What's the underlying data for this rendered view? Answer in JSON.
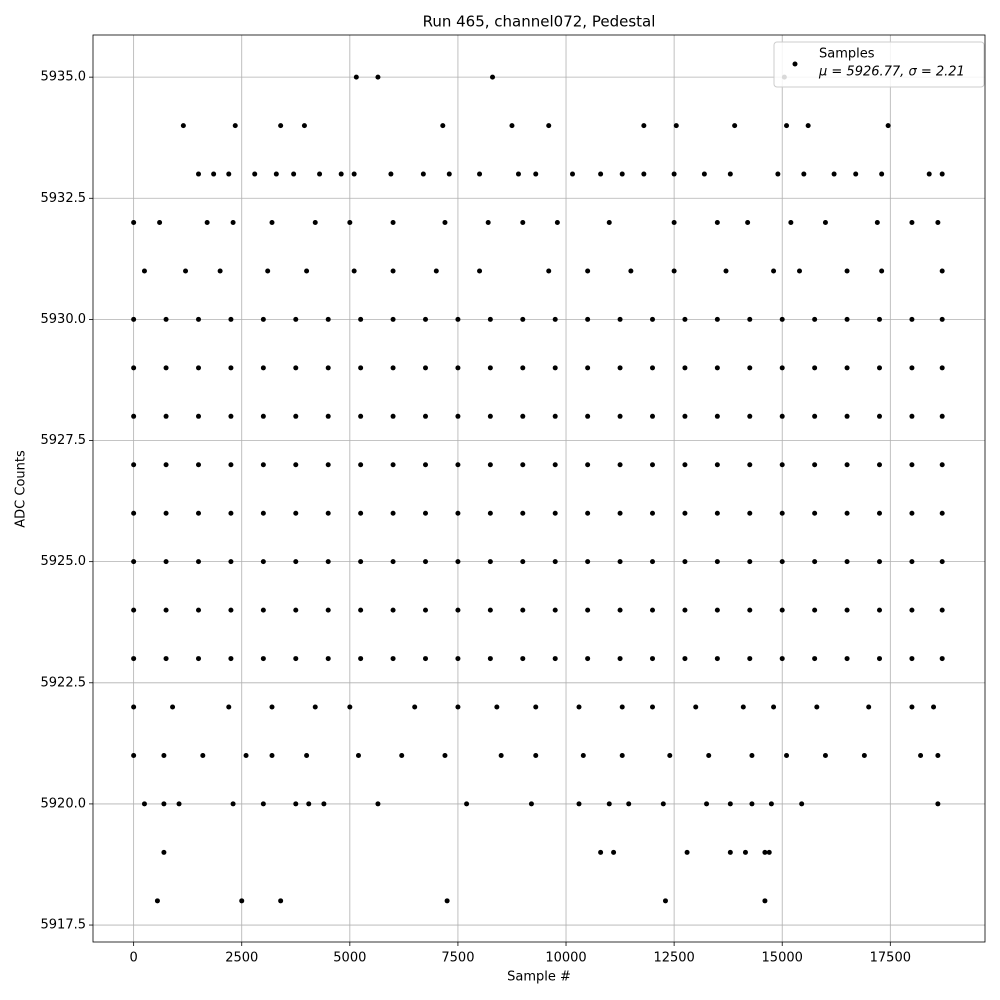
{
  "chart_data": {
    "type": "scatter",
    "title": "Run 465, channel072, Pedestal",
    "x_label": "Sample #",
    "y_label": "ADC Counts",
    "xlim": [
      -940,
      19690
    ],
    "ylim": [
      5917.15,
      5935.87
    ],
    "xticks": [
      0,
      2500,
      5000,
      7500,
      10000,
      12500,
      15000,
      17500
    ],
    "yticks": [
      {
        "value": 5917.5,
        "label": "5917.5"
      },
      {
        "value": 5920,
        "label": "5920.0"
      },
      {
        "value": 5922.5,
        "label": "5922.5"
      },
      {
        "value": 5925,
        "label": "5925.0"
      },
      {
        "value": 5927.5,
        "label": "5927.5"
      },
      {
        "value": 5930,
        "label": "5930.0"
      },
      {
        "value": 5932.5,
        "label": "5932.5"
      },
      {
        "value": 5935,
        "label": "5935.0"
      }
    ],
    "grid": true,
    "legend": "upper right",
    "legend_note": "μ = 5926.77, σ = 2.21",
    "x": [
      5150,
      5650,
      8300,
      15050,
      1150,
      2350,
      3400,
      3950,
      7150,
      8750,
      9600,
      11800,
      12550,
      13900,
      15100,
      15600,
      17450,
      1500,
      1850,
      2200,
      2800,
      3300,
      3700,
      4300,
      4800,
      5100,
      5950,
      6700,
      7300,
      8000,
      8900,
      9300,
      10150,
      10800,
      11300,
      11800,
      12500,
      13200,
      13800,
      14900,
      15500,
      16200,
      16700,
      17300,
      18400,
      18700,
      0,
      600,
      1700,
      2300,
      3200,
      4200,
      5000,
      6000,
      7200,
      8200,
      9000,
      9800,
      11000,
      12500,
      13500,
      14200,
      15200,
      16000,
      17200,
      18000,
      18600,
      250,
      1200,
      2000,
      3100,
      4000,
      5100,
      6000,
      7000,
      8000,
      9600,
      10500,
      11500,
      12500,
      13700,
      14800,
      15400,
      16500,
      17300,
      18700,
      0,
      750,
      1500,
      2250,
      3000,
      3750,
      4500,
      5250,
      6000,
      6750,
      7500,
      8250,
      9000,
      9750,
      10500,
      11250,
      12000,
      12750,
      13500,
      14250,
      15000,
      15750,
      16500,
      17250,
      18000,
      18700,
      0,
      750,
      1500,
      2250,
      3000,
      3750,
      4500,
      5250,
      6000,
      6750,
      7500,
      8250,
      9000,
      9750,
      10500,
      11250,
      12000,
      12750,
      13500,
      14250,
      15000,
      15750,
      16500,
      17250,
      18000,
      18700,
      0,
      750,
      1500,
      2250,
      3000,
      3750,
      4500,
      5250,
      6000,
      6750,
      7500,
      8250,
      9000,
      9750,
      10500,
      11250,
      12000,
      12750,
      13500,
      14250,
      15000,
      15750,
      16500,
      17250,
      18000,
      18700,
      0,
      750,
      1500,
      2250,
      3000,
      3750,
      4500,
      5250,
      6000,
      6750,
      7500,
      8250,
      9000,
      9750,
      10500,
      11250,
      12000,
      12750,
      13500,
      14250,
      15000,
      15750,
      16500,
      17250,
      18000,
      18700,
      0,
      750,
      1500,
      2250,
      3000,
      3750,
      4500,
      5250,
      6000,
      6750,
      7500,
      8250,
      9000,
      9750,
      10500,
      11250,
      12000,
      12750,
      13500,
      14250,
      15000,
      15750,
      16500,
      17250,
      18000,
      18700,
      0,
      750,
      1500,
      2250,
      3000,
      3750,
      4500,
      5250,
      6000,
      6750,
      7500,
      8250,
      9000,
      9750,
      10500,
      11250,
      12000,
      12750,
      13500,
      14250,
      15000,
      15750,
      16500,
      17250,
      18000,
      18700,
      0,
      750,
      1500,
      2250,
      3000,
      3750,
      4500,
      5250,
      6000,
      6750,
      7500,
      8250,
      9000,
      9750,
      10500,
      11250,
      12000,
      12750,
      13500,
      14250,
      15000,
      15750,
      16500,
      17250,
      18000,
      18700,
      0,
      750,
      1500,
      2250,
      3000,
      3750,
      4500,
      5250,
      6000,
      6750,
      7500,
      8250,
      9000,
      9750,
      10500,
      11250,
      12000,
      12750,
      13500,
      14250,
      15000,
      15750,
      16500,
      17250,
      18000,
      18700,
      0,
      900,
      2200,
      3200,
      4200,
      5000,
      6500,
      7500,
      8400,
      9300,
      10300,
      11300,
      12000,
      13000,
      14100,
      14800,
      15800,
      17000,
      18000,
      18500,
      0,
      700,
      1600,
      2600,
      3200,
      4000,
      5200,
      6200,
      7200,
      8500,
      9300,
      10400,
      11300,
      12400,
      13300,
      14300,
      15100,
      16000,
      16900,
      18200,
      18600,
      250,
      700,
      1050,
      2300,
      3000,
      3750,
      4050,
      4400,
      5650,
      7700,
      9200,
      10300,
      11000,
      11450,
      12250,
      13250,
      13800,
      14300,
      14750,
      15450,
      18600,
      700,
      10800,
      11100,
      12800,
      13800,
      14150,
      14600,
      14700,
      550,
      2500,
      3400,
      7250,
      12300,
      14600
    ],
    "series": [
      {
        "name": "Samples",
        "color": "#000000",
        "values": [
          5935,
          5935,
          5935,
          5935,
          5934,
          5934,
          5934,
          5934,
          5934,
          5934,
          5934,
          5934,
          5934,
          5934,
          5934,
          5934,
          5934,
          5933,
          5933,
          5933,
          5933,
          5933,
          5933,
          5933,
          5933,
          5933,
          5933,
          5933,
          5933,
          5933,
          5933,
          5933,
          5933,
          5933,
          5933,
          5933,
          5933,
          5933,
          5933,
          5933,
          5933,
          5933,
          5933,
          5933,
          5933,
          5933,
          5932,
          5932,
          5932,
          5932,
          5932,
          5932,
          5932,
          5932,
          5932,
          5932,
          5932,
          5932,
          5932,
          5932,
          5932,
          5932,
          5932,
          5932,
          5932,
          5932,
          5932,
          5931,
          5931,
          5931,
          5931,
          5931,
          5931,
          5931,
          5931,
          5931,
          5931,
          5931,
          5931,
          5931,
          5931,
          5931,
          5931,
          5931,
          5931,
          5931,
          5930,
          5930,
          5930,
          5930,
          5930,
          5930,
          5930,
          5930,
          5930,
          5930,
          5930,
          5930,
          5930,
          5930,
          5930,
          5930,
          5930,
          5930,
          5930,
          5930,
          5930,
          5930,
          5930,
          5930,
          5930,
          5930,
          5929,
          5929,
          5929,
          5929,
          5929,
          5929,
          5929,
          5929,
          5929,
          5929,
          5929,
          5929,
          5929,
          5929,
          5929,
          5929,
          5929,
          5929,
          5929,
          5929,
          5929,
          5929,
          5929,
          5929,
          5929,
          5929,
          5928,
          5928,
          5928,
          5928,
          5928,
          5928,
          5928,
          5928,
          5928,
          5928,
          5928,
          5928,
          5928,
          5928,
          5928,
          5928,
          5928,
          5928,
          5928,
          5928,
          5928,
          5928,
          5928,
          5928,
          5928,
          5928,
          5927,
          5927,
          5927,
          5927,
          5927,
          5927,
          5927,
          5927,
          5927,
          5927,
          5927,
          5927,
          5927,
          5927,
          5927,
          5927,
          5927,
          5927,
          5927,
          5927,
          5927,
          5927,
          5927,
          5927,
          5927,
          5927,
          5926,
          5926,
          5926,
          5926,
          5926,
          5926,
          5926,
          5926,
          5926,
          5926,
          5926,
          5926,
          5926,
          5926,
          5926,
          5926,
          5926,
          5926,
          5926,
          5926,
          5926,
          5926,
          5926,
          5926,
          5926,
          5926,
          5925,
          5925,
          5925,
          5925,
          5925,
          5925,
          5925,
          5925,
          5925,
          5925,
          5925,
          5925,
          5925,
          5925,
          5925,
          5925,
          5925,
          5925,
          5925,
          5925,
          5925,
          5925,
          5925,
          5925,
          5925,
          5925,
          5924,
          5924,
          5924,
          5924,
          5924,
          5924,
          5924,
          5924,
          5924,
          5924,
          5924,
          5924,
          5924,
          5924,
          5924,
          5924,
          5924,
          5924,
          5924,
          5924,
          5924,
          5924,
          5924,
          5924,
          5924,
          5924,
          5923,
          5923,
          5923,
          5923,
          5923,
          5923,
          5923,
          5923,
          5923,
          5923,
          5923,
          5923,
          5923,
          5923,
          5923,
          5923,
          5923,
          5923,
          5923,
          5923,
          5923,
          5923,
          5923,
          5923,
          5923,
          5923,
          5922,
          5922,
          5922,
          5922,
          5922,
          5922,
          5922,
          5922,
          5922,
          5922,
          5922,
          5922,
          5922,
          5922,
          5922,
          5922,
          5922,
          5922,
          5922,
          5922,
          5921,
          5921,
          5921,
          5921,
          5921,
          5921,
          5921,
          5921,
          5921,
          5921,
          5921,
          5921,
          5921,
          5921,
          5921,
          5921,
          5921,
          5921,
          5921,
          5921,
          5921,
          5920,
          5920,
          5920,
          5920,
          5920,
          5920,
          5920,
          5920,
          5920,
          5920,
          5920,
          5920,
          5920,
          5920,
          5920,
          5920,
          5920,
          5920,
          5920,
          5920,
          5920,
          5919,
          5919,
          5919,
          5919,
          5919,
          5919,
          5919,
          5919,
          5918,
          5918,
          5918,
          5918,
          5918,
          5918
        ]
      }
    ]
  }
}
